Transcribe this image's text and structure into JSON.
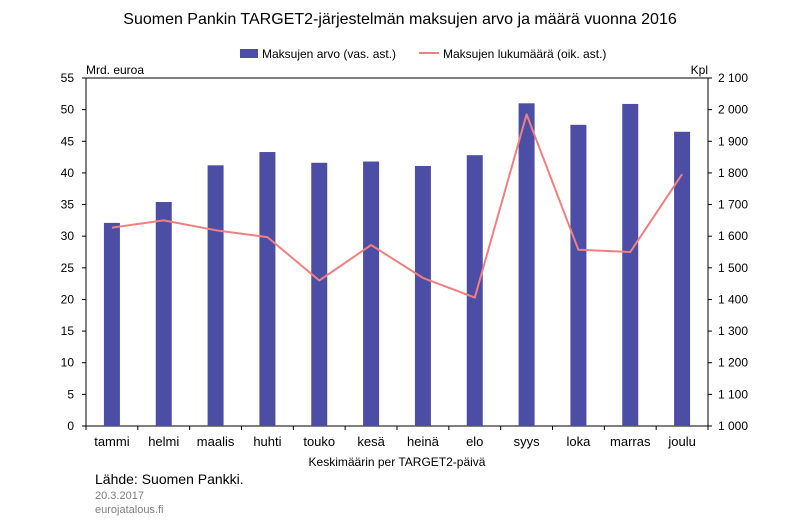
{
  "chart_data": {
    "type": "bar+line",
    "title": "Suomen Pankin TARGET2-järjestelmän maksujen arvo ja määrä vuonna 2016",
    "categories": [
      "tammi",
      "helmi",
      "maalis",
      "huhti",
      "touko",
      "kesä",
      "heinä",
      "elo",
      "syys",
      "loka",
      "marras",
      "joulu"
    ],
    "series": [
      {
        "name": "Maksujen arvo (vas. ast.)",
        "type": "bar",
        "axis": "left",
        "color": "#4c4ea5",
        "values": [
          32.1,
          35.4,
          41.2,
          43.3,
          41.6,
          41.8,
          41.1,
          42.8,
          51.0,
          47.6,
          50.9,
          46.5
        ]
      },
      {
        "name": "Maksujen lukumäärä (oik. ast.)",
        "type": "line",
        "axis": "right",
        "color": "#f08080",
        "values": [
          1627,
          1650,
          1619,
          1597,
          1460,
          1572,
          1468,
          1406,
          1985,
          1557,
          1550,
          1796
        ]
      }
    ],
    "left_axis": {
      "unit": "Mrd. euroa",
      "range": [
        0,
        55
      ],
      "ticks": [
        "0",
        "5",
        "10",
        "15",
        "20",
        "25",
        "30",
        "35",
        "40",
        "45",
        "50",
        "55"
      ]
    },
    "right_axis": {
      "unit": "Kpl",
      "range": [
        1000,
        2100
      ],
      "ticks": [
        "1 000",
        "1 100",
        "1 200",
        "1 300",
        "1 400",
        "1 500",
        "1 600",
        "1 700",
        "1 800",
        "1 900",
        "2 000",
        "2 100"
      ]
    },
    "xlabel": "Keskimäärin per TARGET2-päivä",
    "grid": false,
    "legend_position": "top"
  },
  "footer": {
    "source": "Lähde: Suomen Pankki.",
    "date": "20.3.2017",
    "site": "eurojatalous.fi"
  }
}
